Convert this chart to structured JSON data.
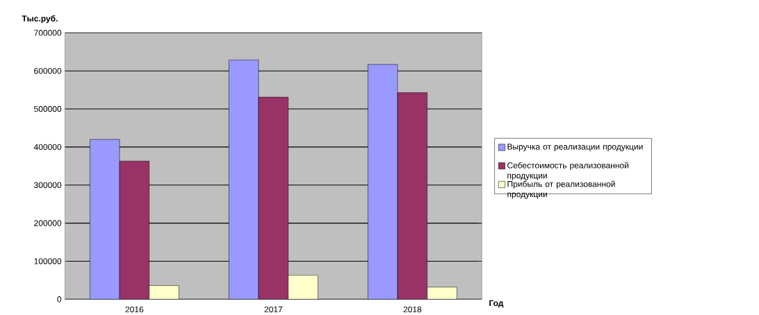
{
  "chart_data": {
    "type": "bar",
    "ylabel": "Тыс.руб.",
    "xlabel": "Год",
    "categories": [
      "2016",
      "2017",
      "2018"
    ],
    "series": [
      {
        "name": "Выручка от реализации продукции",
        "color": "#9999ff",
        "values": [
          420000,
          629000,
          617000
        ]
      },
      {
        "name": "Себестоимость реализованной продукции",
        "color": "#993366",
        "values": [
          363000,
          531000,
          543000
        ]
      },
      {
        "name": "Прибыль от реализованной продукции",
        "color": "#ffffcc",
        "values": [
          36000,
          63000,
          32000
        ]
      }
    ],
    "ylim": [
      0,
      700000
    ],
    "yticks": [
      0,
      100000,
      200000,
      300000,
      400000,
      500000,
      600000,
      700000
    ],
    "grid": "y",
    "legend": "right"
  }
}
